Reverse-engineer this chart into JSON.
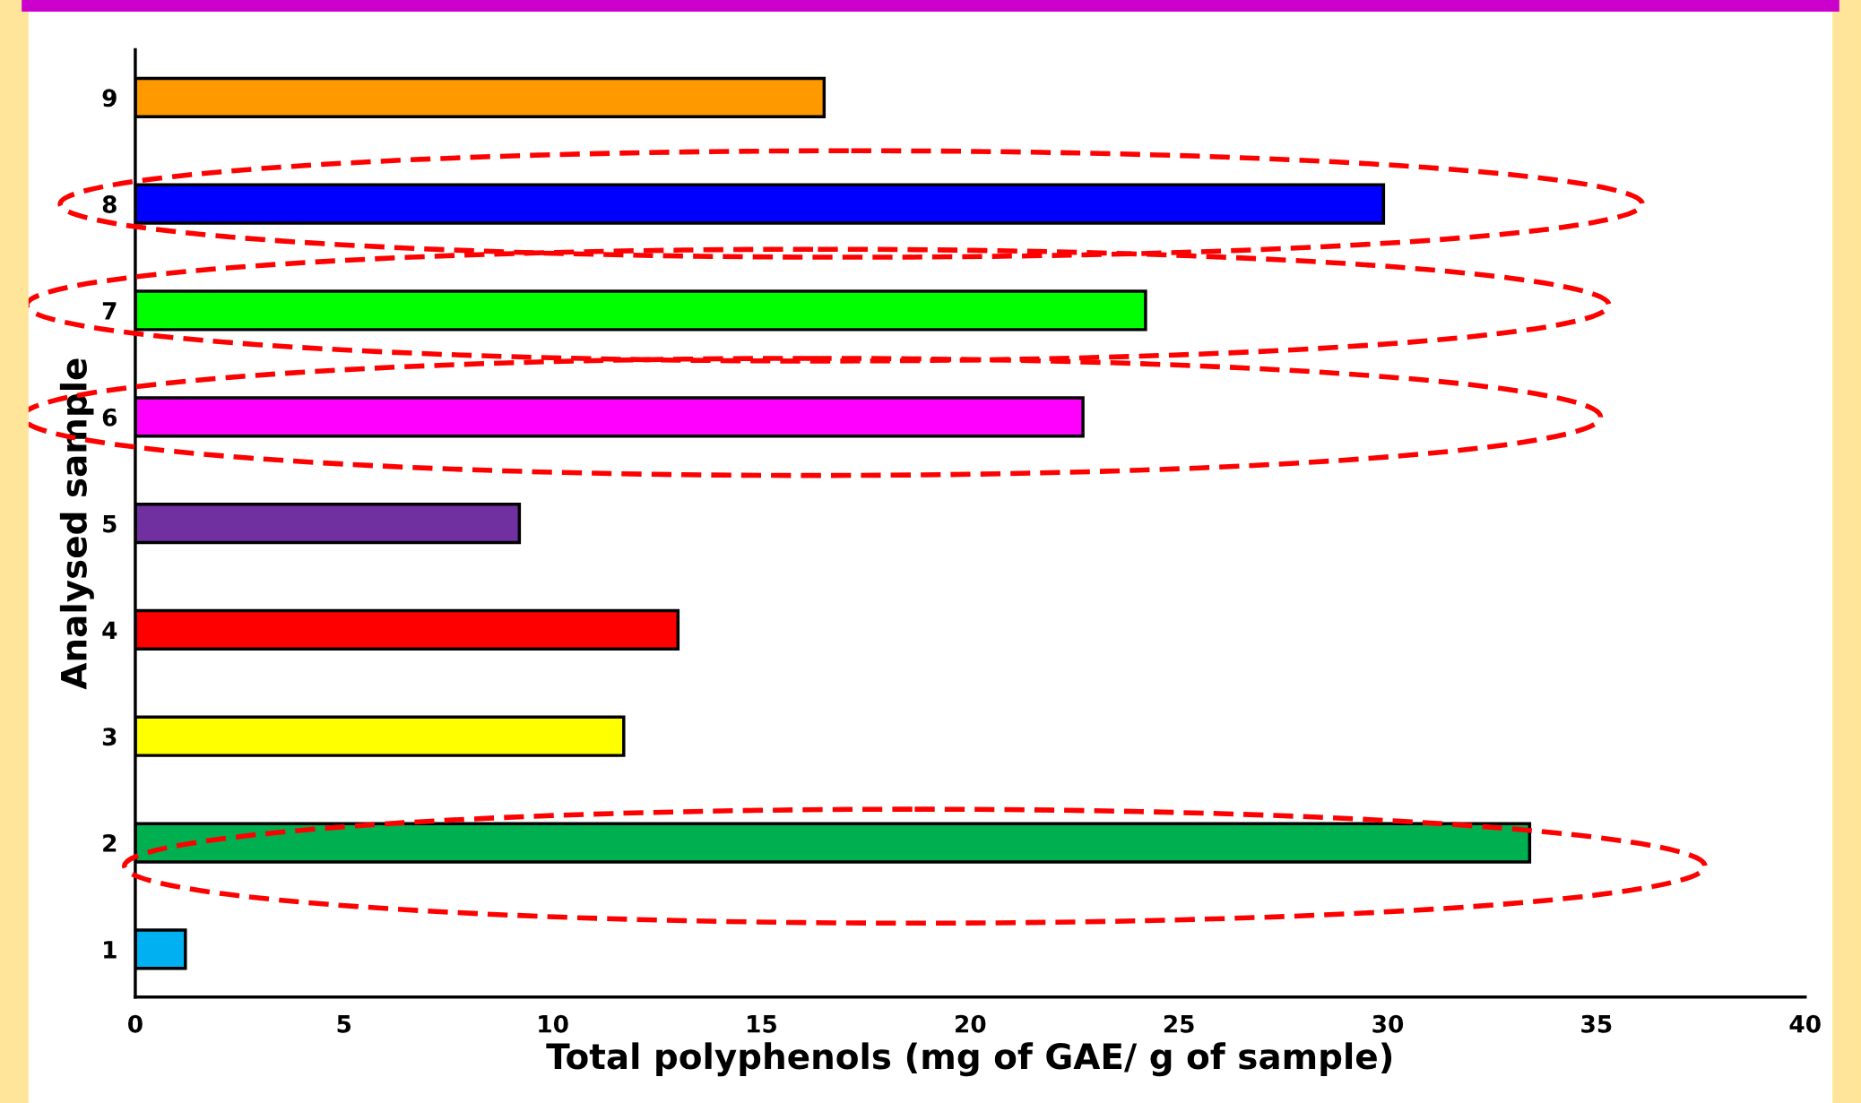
{
  "chart_data": {
    "type": "bar",
    "orientation": "horizontal",
    "xlabel": "Total polyphenols (mg of GAE/ g of sample)",
    "ylabel": "Analysed sample",
    "categories": [
      "9",
      "8",
      "7",
      "6",
      "5",
      "4",
      "3",
      "2",
      "1"
    ],
    "values": [
      16.5,
      29.9,
      24.2,
      22.7,
      9.2,
      13.0,
      11.7,
      33.4,
      1.2
    ],
    "colors": [
      "#ff9900",
      "#0000ff",
      "#00ff00",
      "#ff00ff",
      "#7030a0",
      "#ff0000",
      "#ffff00",
      "#00b050",
      "#00b0f0"
    ],
    "xlim": [
      0,
      40
    ],
    "xticks": [
      0,
      5,
      10,
      15,
      20,
      25,
      30,
      35,
      40
    ],
    "grid": false
  }
}
